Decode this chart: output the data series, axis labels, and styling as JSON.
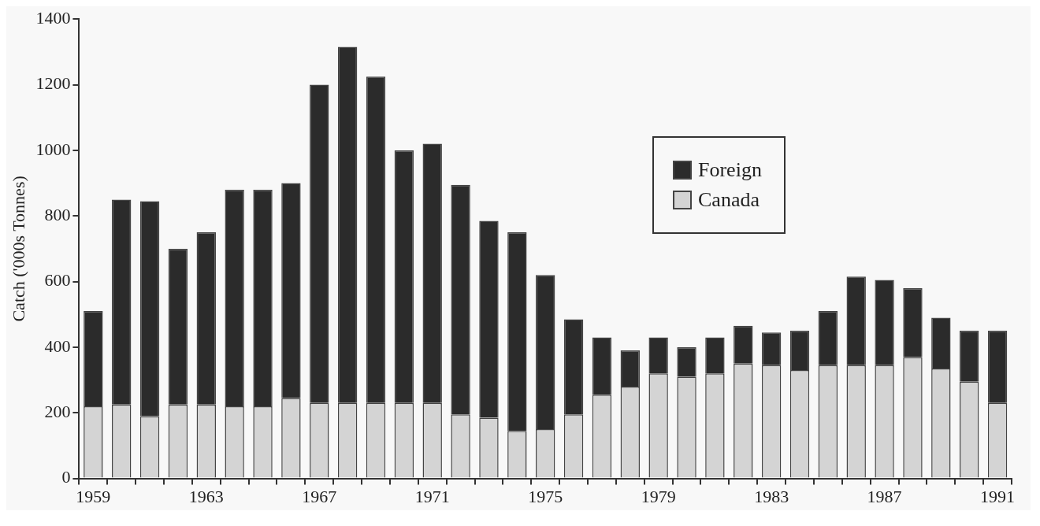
{
  "chart_data": {
    "type": "bar",
    "stacked": true,
    "ylabel": "Catch ('000s Tonnes)",
    "categories": [
      "1959",
      null,
      null,
      null,
      "1963",
      null,
      null,
      null,
      "1967",
      null,
      null,
      null,
      "1971",
      null,
      null,
      null,
      "1975",
      null,
      null,
      null,
      "1979",
      null,
      null,
      null,
      "1983",
      null,
      null,
      null,
      "1987",
      null,
      null,
      null,
      "1991"
    ],
    "series": [
      {
        "name": "Canada",
        "color": "#d4d4d4",
        "values": [
          220,
          225,
          190,
          225,
          225,
          220,
          220,
          245,
          230,
          230,
          230,
          230,
          230,
          195,
          185,
          145,
          150,
          195,
          255,
          280,
          320,
          310,
          320,
          350,
          345,
          330,
          345,
          345,
          345,
          370,
          335,
          295,
          230
        ]
      },
      {
        "name": "Foreign",
        "color": "#2b2b2b",
        "values": [
          290,
          625,
          655,
          475,
          525,
          660,
          660,
          655,
          970,
          1085,
          995,
          770,
          790,
          700,
          600,
          605,
          470,
          290,
          175,
          110,
          110,
          90,
          110,
          115,
          100,
          120,
          165,
          270,
          260,
          210,
          155,
          155,
          220
        ]
      }
    ],
    "ylim": [
      0,
      1400
    ],
    "yticks": [
      0,
      200,
      400,
      600,
      800,
      1000,
      1200,
      1400
    ],
    "grid": false,
    "legend": "right"
  }
}
